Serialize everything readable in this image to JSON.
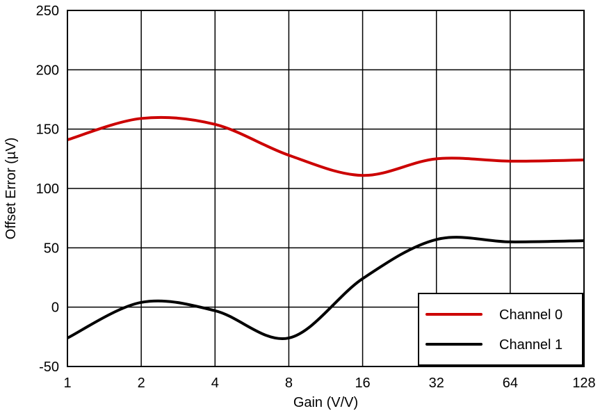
{
  "chart_data": {
    "type": "line",
    "title": "",
    "xlabel": "Gain (V/V)",
    "ylabel": "Offset Error (µV)",
    "x_scale": "log2",
    "categories": [
      "1",
      "2",
      "4",
      "8",
      "16",
      "32",
      "64",
      "128"
    ],
    "x": [
      1,
      2,
      4,
      8,
      16,
      32,
      64,
      128
    ],
    "xlim": [
      1,
      128
    ],
    "ylim": [
      -50,
      250
    ],
    "yticks": [
      "250",
      "200",
      "150",
      "100",
      "50",
      "0",
      "-50"
    ],
    "ytick_values": [
      250,
      200,
      150,
      100,
      50,
      0,
      -50
    ],
    "grid": true,
    "legend_position": "bottom-right",
    "series": [
      {
        "name": "Channel 0",
        "color": "#cc0000",
        "values": [
          141,
          159,
          154,
          128,
          111,
          125,
          123,
          124
        ]
      },
      {
        "name": "Channel 1",
        "color": "#000000",
        "values": [
          -26,
          4,
          -3,
          -26,
          24,
          57,
          55,
          56
        ]
      }
    ]
  }
}
